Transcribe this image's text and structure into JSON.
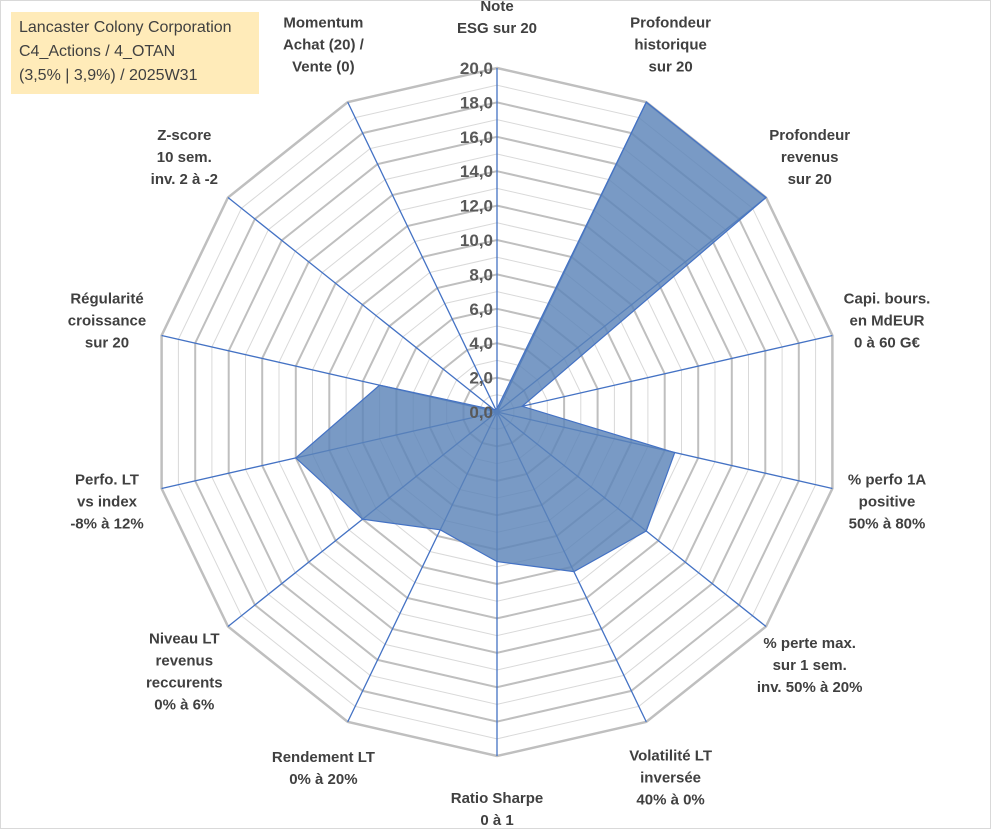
{
  "info_box": {
    "line1": "Lancaster Colony Corporation",
    "line2": "C4_Actions / 4_OTAN",
    "line3": "(3,5% | 3,9%) / 2025W31"
  },
  "colors": {
    "series_fill": "#5b84b8",
    "series_stroke": "#4472c4",
    "spoke": "#4472c4",
    "major_ring": "#bfbfbf",
    "minor_ring": "#d9d9d9",
    "info_box_bg": "#ffe7aa"
  },
  "chart_data": {
    "type": "radar",
    "rlim": [
      0,
      20
    ],
    "tick_values": [
      0,
      2,
      4,
      6,
      8,
      10,
      12,
      14,
      16,
      18,
      20
    ],
    "tick_labels": [
      "0,0",
      "2,0",
      "4,0",
      "6,0",
      "8,0",
      "10,0",
      "12,0",
      "14,0",
      "16,0",
      "18,0",
      "20,0"
    ],
    "grid": true,
    "legend": "none",
    "categories": [
      [
        "Note",
        "ESG sur 20"
      ],
      [
        "Profondeur",
        "historique",
        "sur 20"
      ],
      [
        "Profondeur",
        "revenus",
        "sur 20"
      ],
      [
        "Capi. bours.",
        "en MdEUR",
        "0 à 60 G€"
      ],
      [
        "% perfo 1A",
        "positive",
        "50% à 80%"
      ],
      [
        "% perte max.",
        "sur 1 sem.",
        "inv. 50% à 20%"
      ],
      [
        "Volatilité LT",
        "inversée",
        "40% à 0%"
      ],
      [
        "Ratio Sharpe",
        "0 à 1"
      ],
      [
        "Rendement LT",
        "0% à 20%"
      ],
      [
        "Niveau LT",
        "revenus",
        "reccurents",
        "0% à 6%"
      ],
      [
        "Perfo. LT",
        "vs index",
        "-8% à 12%"
      ],
      [
        "Régularité",
        "croissance",
        "sur 20"
      ],
      [
        "Z-score",
        "10 sem.",
        "inv. 2 à -2"
      ],
      [
        "Momentum",
        "Achat (20) /",
        "Vente (0)"
      ]
    ],
    "series": [
      {
        "values": [
          0.2,
          20.0,
          20.0,
          1.5,
          10.6,
          11.1,
          10.3,
          8.7,
          7.6,
          10.0,
          12.0,
          7.0,
          0.2,
          0.2
        ]
      }
    ]
  }
}
